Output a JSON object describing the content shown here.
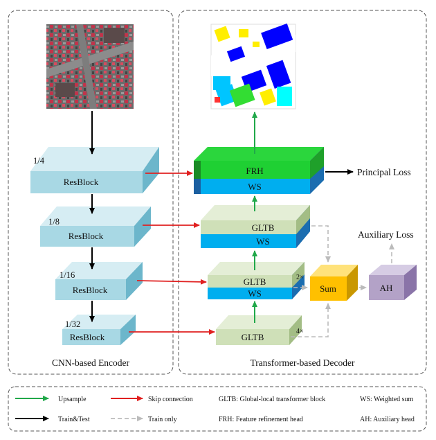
{
  "encoder": {
    "caption": "CNN-based Encoder",
    "blocks": [
      {
        "label": "ResBlock",
        "scale": "1/4"
      },
      {
        "label": "ResBlock",
        "scale": "1/8"
      },
      {
        "label": "ResBlock",
        "scale": "1/16"
      },
      {
        "label": "ResBlock",
        "scale": "1/32"
      }
    ]
  },
  "decoder": {
    "caption": "Transformer-based Decoder",
    "frh": {
      "top": "FRH",
      "bottom": "WS"
    },
    "gltb1": {
      "top": "GLTB",
      "bottom": "WS"
    },
    "gltb2": {
      "top": "GLTB",
      "bottom": "WS"
    },
    "gltb3": {
      "top": "GLTB"
    },
    "sum": "Sum",
    "ah": "AH",
    "principal_loss": "Principal Loss",
    "auxiliary_loss": "Auxiliary Loss",
    "x2": "2×",
    "x4": "4×"
  },
  "legend": {
    "upsample": "Upsample",
    "skip": "Skip connection",
    "gltb": "GLTB: Global-local transformer block",
    "ws": "WS: Weighted sum",
    "traintest": "Train&Test",
    "trainonly": "Train only",
    "frh": "FRH: Feature refinement head",
    "ah": "AH: Auxiliary head"
  },
  "colors": {
    "upsample": "#21a84a",
    "skip": "#e02020",
    "traintest": "#000000",
    "trainonly": "#bbbbbb",
    "resblock": "#a8d8e4",
    "gltb": "#cfe0b8",
    "ws": "#00aeef",
    "frh": "#1fd033",
    "sum": "#ffc000",
    "ah": "#b3a2c7"
  }
}
